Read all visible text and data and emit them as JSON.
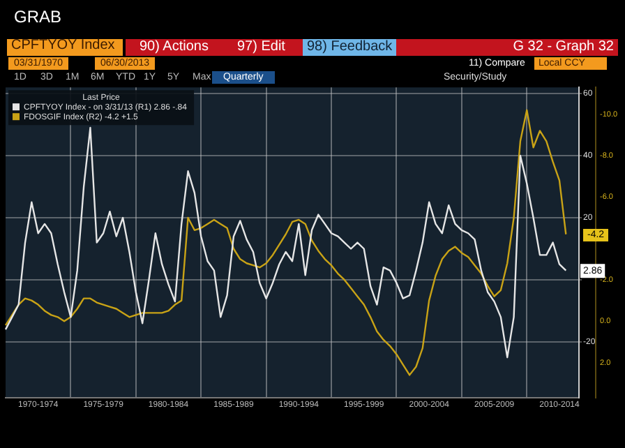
{
  "chart_data": {
    "type": "line",
    "title": "CPFTYOY Index",
    "subtitle": "G 32 - Graph 32",
    "legend_title": "Last Price",
    "legend": "top left",
    "grid": true,
    "annotations": [
      "GRAB",
      "90) Actions",
      "97) Edit",
      "98) Feedback",
      "03/31/1970",
      "06/30/2013",
      "11) Compare",
      "Local CCY",
      "1D",
      "3D",
      "1M",
      "6M",
      "YTD",
      "1Y",
      "5Y",
      "Max",
      "Quarterly",
      "Security/Study",
      "-4.2",
      {
        "text": "2.86",
        "y": 2.86
      }
    ],
    "categories": [
      null,
      null,
      null,
      null,
      null,
      "1970-1974",
      null,
      null,
      null,
      null,
      null,
      null,
      null,
      null,
      null,
      "1975-1979",
      null,
      null,
      null,
      null,
      null,
      null,
      null,
      null,
      null,
      "1980-1984",
      null,
      null,
      null,
      null,
      null,
      null,
      null,
      null,
      null,
      "1985-1989",
      null,
      null,
      null,
      null,
      null,
      null,
      null,
      null,
      null,
      "1990-1994",
      null,
      null,
      null,
      null,
      null,
      null,
      null,
      null,
      null,
      "1995-1999",
      null,
      null,
      null,
      null,
      null,
      null,
      null,
      null,
      null,
      "2000-2004",
      null,
      null,
      null,
      null,
      null,
      null,
      null,
      null,
      null,
      "2005-2009",
      null,
      null,
      null,
      null,
      null,
      null,
      null,
      null,
      null,
      "2010-2014",
      null,
      null,
      null
    ],
    "ylim": [
      -38,
      62
    ],
    "yticks": [
      -20,
      {
        "value": 0,
        "label": null
      },
      20,
      40,
      60
    ],
    "y2lim": [
      3.7,
      -11.3
    ],
    "y2ticks": [
      {
        "value": 2,
        "label": "2.0"
      },
      {
        "value": 0,
        "label": "0.0"
      },
      {
        "value": -2,
        "label": "-2.0"
      },
      {
        "value": -6,
        "label": "-6.0"
      },
      {
        "value": -8,
        "label": "-8.0"
      },
      {
        "value": -10,
        "label": "-10.0"
      }
    ],
    "series": [
      {
        "name": "CPFTYOY Index - on 3/31/13 (R1) 2.86 -.84",
        "color": "#e6e6e6",
        "axis": "y",
        "values": [
          -16,
          -12,
          -8,
          12,
          25,
          15,
          18,
          15,
          5,
          -4,
          -12,
          3,
          30,
          49,
          12,
          15,
          22,
          14,
          20,
          9,
          -4,
          -14,
          0,
          15,
          5,
          -1.5,
          -7,
          18,
          35,
          28,
          14,
          6,
          3,
          -12,
          -5,
          14,
          19,
          13,
          9,
          -1,
          -6,
          -1,
          5,
          9,
          6,
          18,
          1.5,
          16,
          21,
          18,
          15,
          14,
          12,
          10,
          12,
          10,
          -2,
          -8,
          4,
          3,
          -1,
          -6,
          -5,
          3,
          12,
          25,
          18,
          15,
          24,
          18,
          16,
          15,
          13,
          3,
          -4,
          -7,
          -12,
          -25,
          -12,
          40,
          31,
          20,
          8,
          8,
          12,
          5,
          3,
          null,
          null
        ]
      },
      {
        "name": "FDOSGIF Index (R2) -4.2 +1.5",
        "color": "#c9a316",
        "axis": "y2",
        "values": [
          0.2,
          -0.3,
          -0.8,
          -1.1,
          -1,
          -0.8,
          -0.5,
          -0.3,
          -0.2,
          0,
          -0.2,
          -0.6,
          -1.1,
          -1.1,
          -0.9,
          -0.8,
          -0.7,
          -0.6,
          -0.4,
          -0.2,
          -0.3,
          -0.4,
          -0.4,
          -0.4,
          -0.4,
          -0.5,
          -0.8,
          -1,
          -5,
          -4.4,
          -4.5,
          -4.7,
          -4.9,
          -4.7,
          -4.5,
          -3.5,
          -3,
          -2.8,
          -2.7,
          -2.6,
          -2.8,
          -3.2,
          -3.7,
          -4.2,
          -4.8,
          -4.9,
          -4.7,
          -3.9,
          -3.4,
          -3,
          -2.7,
          -2.3,
          -2,
          -1.6,
          -1.2,
          -0.8,
          -0.2,
          0.5,
          0.9,
          1.2,
          1.6,
          2.1,
          2.6,
          2.2,
          1.3,
          -1,
          -2.2,
          -3,
          -3.4,
          -3.6,
          -3.3,
          -3.1,
          -2.7,
          -2.3,
          -1.7,
          -1.2,
          -1.5,
          -2.8,
          -5,
          -8.7,
          -10.2,
          -8.4,
          -9.2,
          -8.7,
          -7.7,
          -6.8,
          -4.2,
          null,
          null
        ]
      }
    ]
  }
}
